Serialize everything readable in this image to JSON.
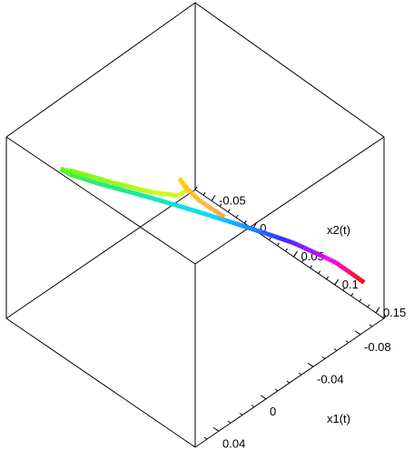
{
  "chart_data": {
    "type": "line",
    "dimension": "3d",
    "box": "boxed",
    "grid": false,
    "legend": "none",
    "color_scheme": "rainbow (red at start, through magenta, blue, cyan, green, yellow, to orange at end)",
    "axes": {
      "x1": {
        "label": "x1(t)",
        "ticks": [
          "-0.08",
          "-0.04",
          "0",
          "0.04"
        ],
        "tick_values": [
          -0.08,
          -0.04,
          0,
          0.04
        ],
        "range": [
          -0.1,
          0.06
        ]
      },
      "x2": {
        "label": "x2(t)",
        "ticks": [
          "-0.05",
          "0",
          "0.05",
          "0.1",
          "0.15"
        ],
        "tick_values": [
          -0.05,
          0,
          0.05,
          0.1,
          0.15
        ],
        "range": [
          -0.07,
          0.16
        ]
      }
    },
    "series": [
      {
        "x1": [
          -0.09,
          -0.085,
          -0.075,
          -0.06,
          -0.045,
          -0.03,
          -0.015,
          -0.005,
          0.0,
          0.004,
          0.006,
          0.005,
          0.0,
          -0.01,
          -0.02,
          -0.025,
          -0.02,
          -0.015,
          -0.017,
          -0.02
        ],
        "x2": [
          0.15,
          0.13,
          0.1,
          0.08,
          0.04,
          0.0,
          -0.04,
          -0.06,
          -0.065,
          -0.05,
          0.0,
          0.04,
          0.06,
          0.05,
          0.02,
          0.0,
          0.005,
          0.015,
          0.012,
          0.01
        ]
      }
    ]
  }
}
